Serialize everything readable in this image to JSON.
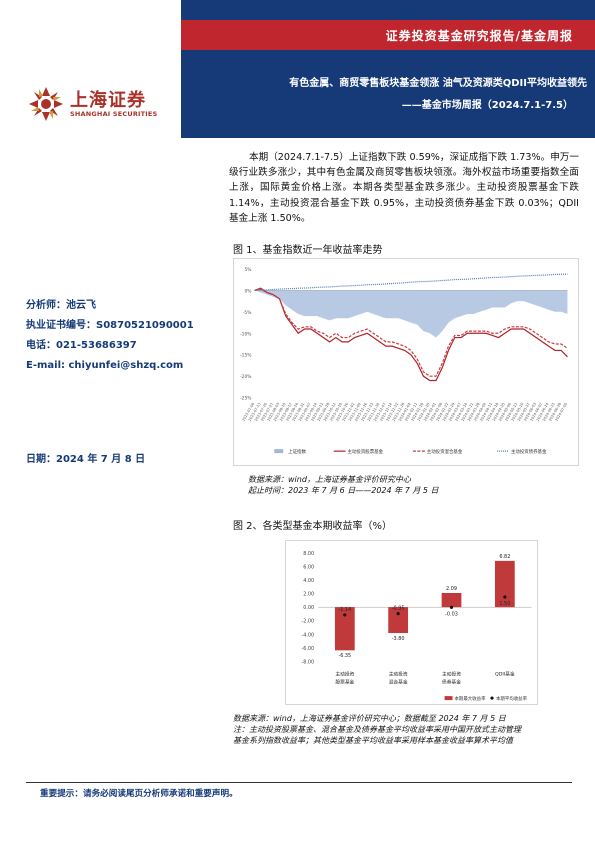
{
  "header": {
    "category": "证券投资基金研究报告/基金周报",
    "title_line1": "有色金属、商贸零售板块基金领涨 油气及资源类QDII平均收益领先",
    "title_line2": "——基金市场周报（2024.7.1-7.5）"
  },
  "logo": {
    "name_cn": "上海证券",
    "name_en": "SHANGHAI SECURITIES"
  },
  "summary": {
    "paragraph": "本期（2024.7.1-7.5）上证指数下跌 0.59%，深证成指下跌 1.73%。申万一级行业跌多涨少，其中有色金属及商贸零售板块领涨。海外权益市场重要指数全面上涨，国际黄金价格上涨。本期各类型基金跌多涨少。主动投资股票基金下跌 1.14%，主动投资混合基金下跌 0.95%，主动投资债券基金下跌 0.03%；QDII 基金上涨 1.50%。"
  },
  "author": {
    "analyst": "分析师：池云飞",
    "license": "执业证书编号：S0870521090001",
    "phone": "电话：021-53686397",
    "email": "E-mail: chiyunfei@shzq.com"
  },
  "date": "日期：2024 年 7 月 8 日",
  "figure1": {
    "title": "图 1、基金指数近一年收益率走势",
    "source": "数据来源：wind，上海证券基金评价研究中心",
    "period": "起止时间：2023 年 7 月 6 日——2024 年 7 月 5 日"
  },
  "figure2": {
    "title": "图 2、各类型基金本期收益率（%）",
    "source": "数据来源：wind，上海证券基金评价研究中心；数据截至 2024 年 7 月 5 日",
    "note1": "注：主动投资股票基金、混合基金及债券基金平均收益率采用中国开放式主动管理",
    "note2": "基金系列指数收益率；其他类型基金平均收益率采用样本基金收益率算术平均值"
  },
  "footer": "重要提示：请务必阅读尾页分析师承诺和重要声明。",
  "chart_data": [
    {
      "type": "line",
      "title": "",
      "y_ticks": [
        "5%",
        "0%",
        "-5%",
        "-10%",
        "-15%",
        "-20%",
        "-25%"
      ],
      "ylim": [
        -25,
        5
      ],
      "x_ticks": [
        "2023-07-06",
        "2023-07-13",
        "2023-07-20",
        "2023-07-27",
        "2023-08-03",
        "2023-08-10",
        "2023-08-17",
        "2023-08-24",
        "2023-08-31",
        "2023-09-07",
        "2023-09-14",
        "2023-09-21",
        "2023-09-28",
        "2023-10-12",
        "2023-10-19",
        "2023-10-26",
        "2023-11-02",
        "2023-11-09",
        "2023-11-16",
        "2023-11-23",
        "2023-11-30",
        "2023-12-07",
        "2023-12-14",
        "2023-12-21",
        "2023-12-28",
        "2024-01-04",
        "2024-01-11",
        "2024-01-18",
        "2024-01-25",
        "2024-02-01",
        "2024-02-08",
        "2024-02-22",
        "2024-02-29",
        "2024-03-07",
        "2024-03-14",
        "2024-03-21",
        "2024-03-28",
        "2024-04-04",
        "2024-04-11",
        "2024-04-18",
        "2024-04-25",
        "2024-05-06",
        "2024-05-13",
        "2024-05-20",
        "2024-05-27",
        "2024-06-03",
        "2024-06-07",
        "2024-06-14",
        "2024-06-21",
        "2024-06-28",
        "2024-07-05"
      ],
      "legend_placement": "bottom",
      "series": [
        {
          "name": "上证指数",
          "style": "area",
          "color": "#9fb7da",
          "values": [
            0,
            -0.5,
            -1,
            -1.5,
            -2,
            -3.5,
            -4.5,
            -5.5,
            -6,
            -6,
            -6,
            -6.5,
            -7,
            -6.5,
            -6.5,
            -6.5,
            -6,
            -5.5,
            -5,
            -5.5,
            -6,
            -6.5,
            -6.5,
            -6.5,
            -7,
            -7.5,
            -8,
            -9.5,
            -10,
            -11,
            -9.5,
            -7.5,
            -6.5,
            -6,
            -5.5,
            -5.5,
            -5,
            -4.5,
            -4,
            -4,
            -4,
            -3,
            -2.5,
            -2.5,
            -3,
            -3.5,
            -4,
            -4.5,
            -5,
            -5,
            -5.5
          ]
        },
        {
          "name": "主动投资股票基金",
          "style": "solid",
          "color": "#b51f26",
          "values": [
            0,
            0.5,
            -0.5,
            -1,
            -2,
            -6,
            -8,
            -10,
            -9,
            -9,
            -10,
            -11,
            -12,
            -11,
            -12,
            -12,
            -11,
            -10.5,
            -10,
            -11,
            -12,
            -13,
            -13,
            -13.5,
            -14,
            -15,
            -17,
            -20,
            -21,
            -21,
            -18,
            -14,
            -11,
            -11,
            -10,
            -10,
            -10,
            -10,
            -10.5,
            -11,
            -10,
            -9,
            -9,
            -9,
            -10,
            -11,
            -12,
            -13,
            -14,
            -14,
            -15.5
          ]
        },
        {
          "name": "主动投资混合基金",
          "style": "dashed",
          "color": "#c73a3f",
          "values": [
            0,
            0.3,
            -0.5,
            -1,
            -2,
            -5.5,
            -7.5,
            -9,
            -8.5,
            -8.5,
            -9.5,
            -10,
            -11,
            -10,
            -11,
            -11,
            -10,
            -9.5,
            -9,
            -10,
            -11,
            -12,
            -12,
            -12.5,
            -13,
            -14,
            -16,
            -19,
            -20,
            -20,
            -17,
            -13,
            -10.5,
            -10.5,
            -9.5,
            -9.5,
            -9.5,
            -9.5,
            -10,
            -10,
            -9,
            -8.5,
            -8.5,
            -8.5,
            -9,
            -10,
            -11,
            -12,
            -12.5,
            -12.5,
            -13.5
          ]
        },
        {
          "name": "主动投资债券基金",
          "style": "dotted",
          "color": "#4f79b5",
          "values": [
            0,
            0.05,
            0.1,
            0.2,
            0.3,
            0.35,
            0.4,
            0.5,
            0.55,
            0.6,
            0.7,
            0.75,
            0.8,
            0.9,
            1,
            1.05,
            1.1,
            1.2,
            1.3,
            1.35,
            1.4,
            1.5,
            1.6,
            1.7,
            1.8,
            1.9,
            2,
            2.05,
            2.1,
            2.2,
            2.3,
            2.4,
            2.5,
            2.55,
            2.6,
            2.7,
            2.8,
            2.9,
            3,
            3.05,
            3.1,
            3.2,
            3.3,
            3.35,
            3.4,
            3.5,
            3.55,
            3.6,
            3.7,
            3.75,
            3.8
          ]
        }
      ]
    },
    {
      "type": "bar",
      "categories": [
        "主动投资股票基金",
        "主动投资混合基金",
        "主动投资债券基金",
        "QDII基金"
      ],
      "series": [
        {
          "name": "本期最大收益率",
          "values": [
            -6.35,
            -3.8,
            2.09,
            6.82
          ],
          "color": "#c0393b"
        },
        {
          "name": "本期平均收益率",
          "values": [
            -1.14,
            -0.95,
            -0.03,
            1.5
          ],
          "color": "#111111"
        }
      ],
      "y_ticks": [
        "8.00",
        "6.00",
        "4.00",
        "2.00",
        "0.00",
        "-2.00",
        "-4.00",
        "-6.00",
        "-8.00"
      ],
      "ylim": [
        -8,
        8
      ],
      "bar_labels": [
        "-6.35",
        "-3.80",
        "2.09",
        "6.82"
      ],
      "dot_labels": [
        "-1.14",
        "-0.95",
        "-0.03",
        "1.50"
      ],
      "legend_placement": "bottom-right"
    }
  ]
}
